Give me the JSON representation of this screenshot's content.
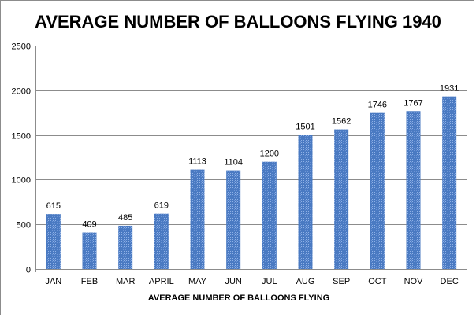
{
  "chart_data": {
    "type": "bar",
    "title": "AVERAGE NUMBER OF BALLOONS FLYING 1940",
    "xlabel": "AVERAGE NUMBER OF BALLOONS FLYING",
    "ylabel": "",
    "categories": [
      "JAN",
      "FEB",
      "MAR",
      "APRIL",
      "MAY",
      "JUN",
      "JUL",
      "AUG",
      "SEP",
      "OCT",
      "NOV",
      "DEC"
    ],
    "values": [
      615,
      409,
      485,
      619,
      1113,
      1104,
      1200,
      1501,
      1562,
      1746,
      1767,
      1931
    ],
    "ylim": [
      0,
      2500
    ],
    "yticks": [
      0,
      500,
      1000,
      1500,
      2000,
      2500
    ],
    "grid": true,
    "legend": "none",
    "bar_color": "#4a7ac2",
    "bar_highlight_color": "#8fb1e6",
    "grid_color": "#8c8c8c"
  }
}
